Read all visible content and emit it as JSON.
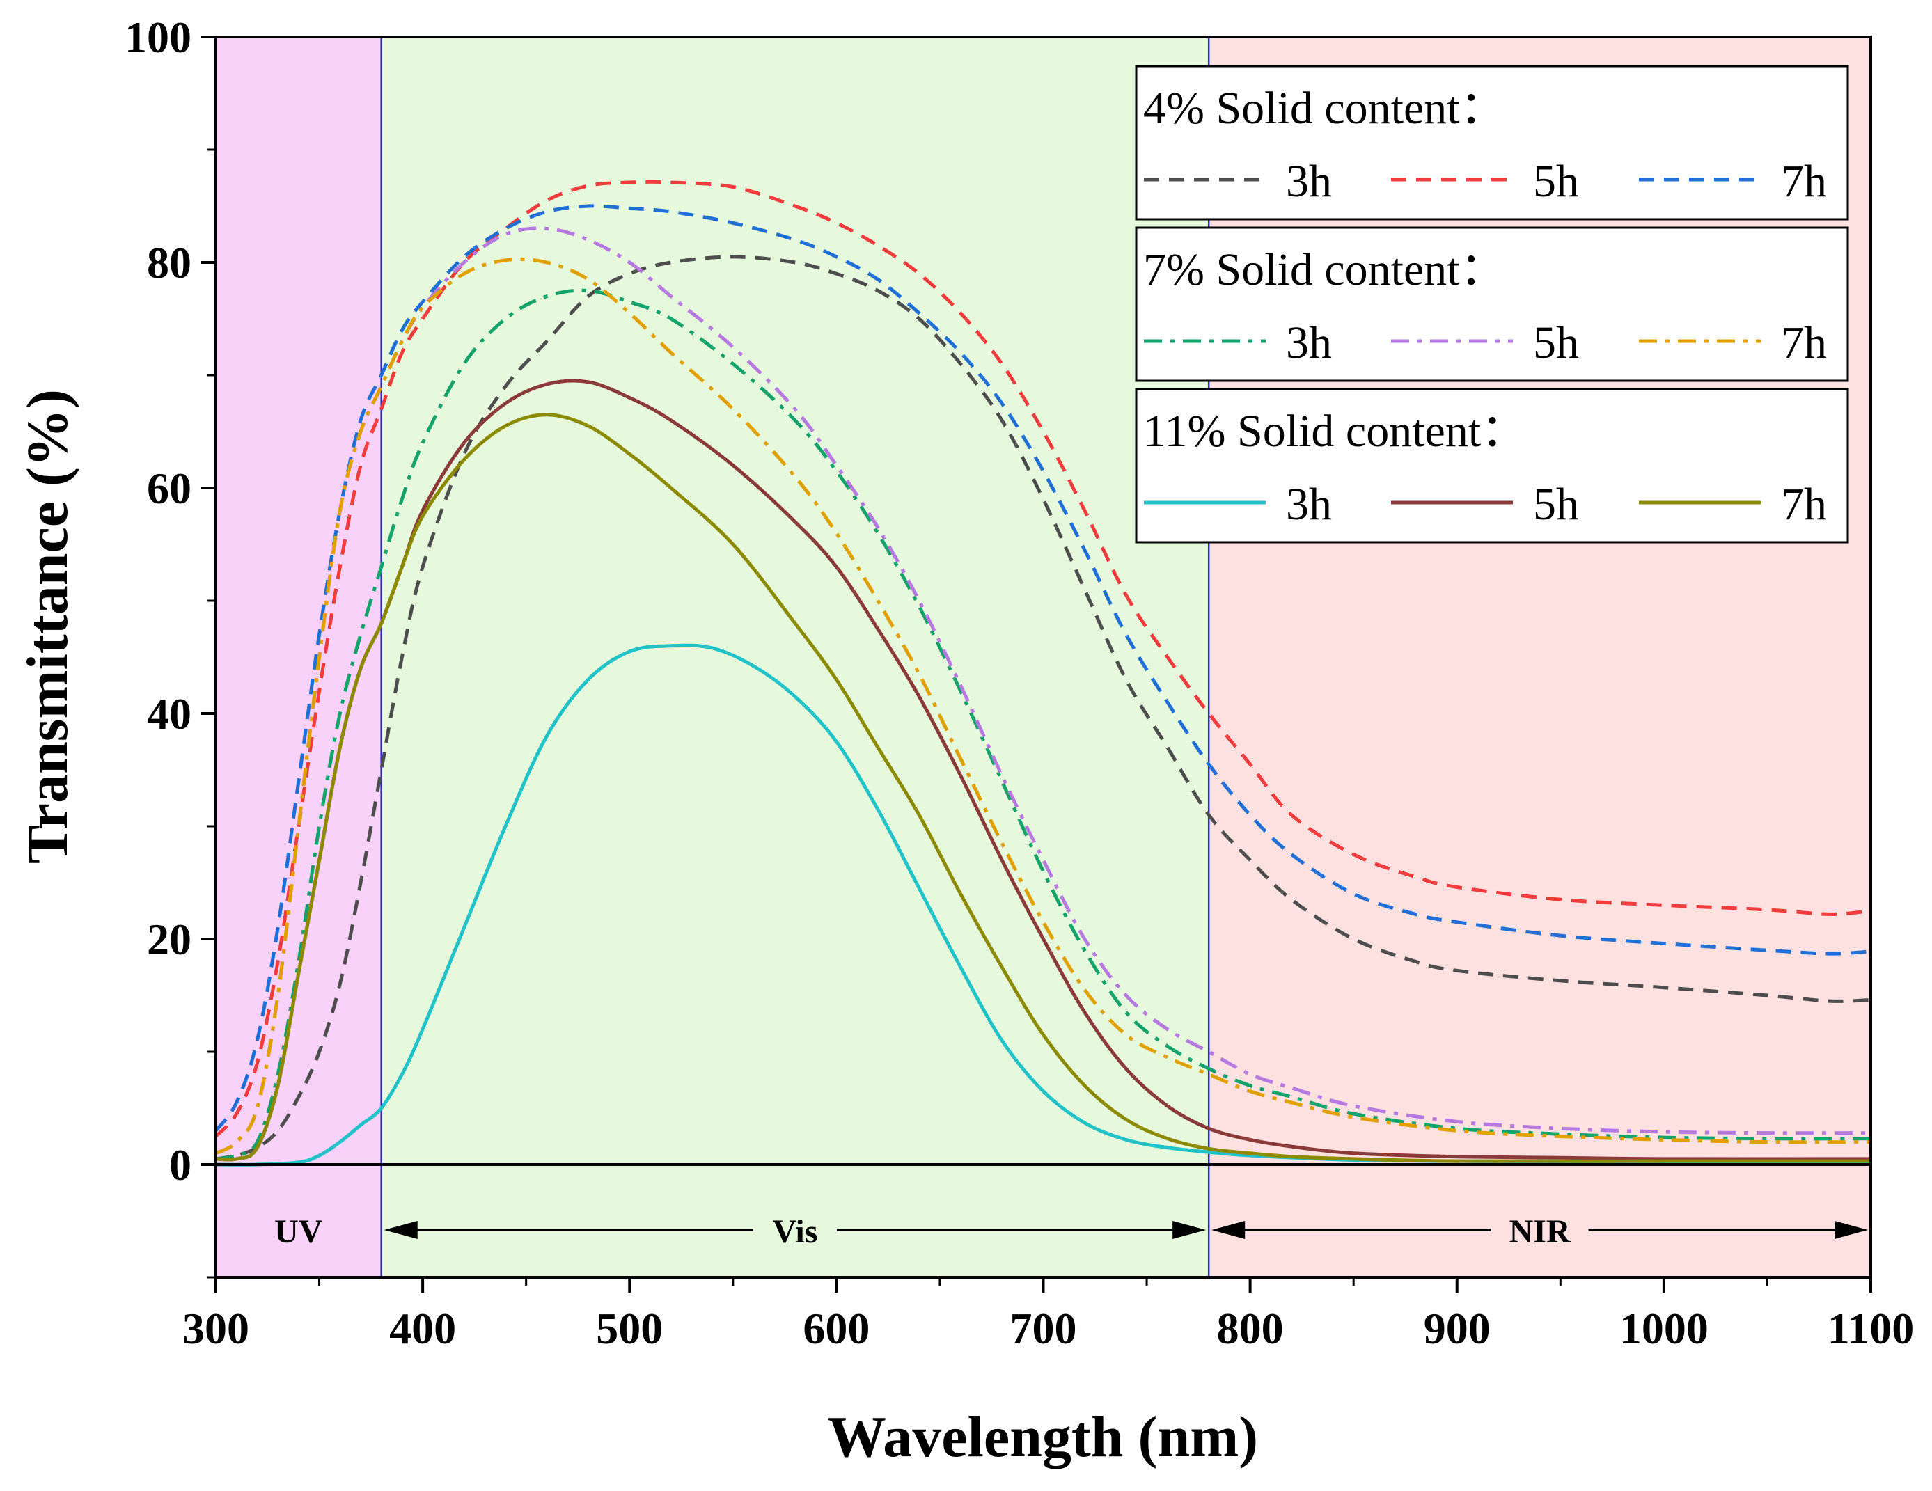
{
  "chart_data": {
    "type": "line",
    "xlabel": "Wavelength (nm)",
    "ylabel": "Transmittance (%)",
    "xlim": [
      300,
      1100
    ],
    "ylim": [
      -10,
      100
    ],
    "xticks": [
      300,
      400,
      500,
      600,
      700,
      800,
      900,
      1000,
      1100
    ],
    "yticks": [
      0,
      20,
      40,
      60,
      80,
      100
    ],
    "grid": false,
    "legend_position": "top-right",
    "regions": [
      {
        "label": "UV",
        "x_start": 300,
        "x_end": 380,
        "color": "#f9d2f9"
      },
      {
        "label": "Vis",
        "x_start": 380,
        "x_end": 780,
        "color": "#e6f9dc"
      },
      {
        "label": "NIR",
        "x_start": 780,
        "x_end": 1100,
        "color": "#fde0e0"
      }
    ],
    "legend_groups": [
      {
        "title": "4% Solid content：",
        "entries": [
          "3h",
          "5h",
          "7h"
        ]
      },
      {
        "title": "7% Solid content：",
        "entries": [
          "3h",
          "5h",
          "7h"
        ]
      },
      {
        "title": "11% Solid content：",
        "entries": [
          "3h",
          "5h",
          "7h"
        ]
      }
    ],
    "series": [
      {
        "name": "4% 3h",
        "group": 0,
        "label": "3h",
        "color": "#4d4d4d",
        "style": "dash",
        "x": [
          300,
          310,
          320,
          330,
          340,
          350,
          360,
          370,
          380,
          390,
          400,
          420,
          440,
          460,
          480,
          500,
          520,
          550,
          580,
          600,
          620,
          640,
          660,
          680,
          700,
          720,
          740,
          760,
          780,
          800,
          820,
          850,
          880,
          900,
          950,
          1000,
          1050,
          1080,
          1100
        ],
        "y": [
          0.5,
          0.8,
          1.5,
          3,
          6,
          10,
          16,
          25,
          35,
          45,
          53,
          63,
          69,
          73,
          77,
          79,
          80,
          80.5,
          80,
          79,
          77.5,
          75,
          71,
          66,
          59,
          51,
          43,
          37,
          31,
          27,
          23.5,
          20,
          18,
          17.2,
          16.3,
          15.7,
          15,
          14.5,
          14.6
        ]
      },
      {
        "name": "4% 5h",
        "group": 0,
        "label": "5h",
        "color": "#f03c3c",
        "style": "dash",
        "x": [
          300,
          310,
          320,
          330,
          340,
          350,
          360,
          370,
          380,
          390,
          400,
          420,
          440,
          460,
          480,
          500,
          520,
          550,
          580,
          600,
          620,
          640,
          660,
          680,
          700,
          720,
          740,
          760,
          780,
          800,
          820,
          850,
          880,
          900,
          950,
          1000,
          1050,
          1080,
          1100
        ],
        "y": [
          2.5,
          4.5,
          9,
          18,
          30,
          42,
          53,
          62,
          67,
          72,
          75,
          80,
          83,
          85.5,
          86.8,
          87.1,
          87.1,
          86.7,
          85,
          83.5,
          81.5,
          79,
          75.5,
          71,
          65,
          58,
          50.5,
          45,
          40,
          35.5,
          31,
          27.5,
          25.5,
          24.6,
          23.5,
          23,
          22.6,
          22.2,
          22.5
        ]
      },
      {
        "name": "4% 7h",
        "group": 0,
        "label": "7h",
        "color": "#1f6fd6",
        "style": "dash",
        "x": [
          300,
          310,
          320,
          330,
          340,
          350,
          360,
          370,
          380,
          390,
          400,
          420,
          440,
          460,
          480,
          500,
          520,
          550,
          580,
          600,
          620,
          640,
          660,
          680,
          700,
          720,
          740,
          760,
          780,
          800,
          820,
          850,
          880,
          900,
          950,
          1000,
          1050,
          1080,
          1100
        ],
        "y": [
          3,
          5.5,
          11,
          21,
          34,
          47,
          58,
          66,
          70,
          74,
          76.5,
          80.5,
          83,
          84.5,
          85,
          84.8,
          84.5,
          83.5,
          82,
          80.5,
          78.5,
          75.5,
          72,
          67.5,
          61.5,
          54.5,
          47,
          41,
          35.5,
          31,
          27.5,
          24,
          22.2,
          21.5,
          20.3,
          19.6,
          19,
          18.7,
          18.9
        ]
      },
      {
        "name": "7% 3h",
        "group": 1,
        "label": "3h",
        "color": "#13a36b",
        "style": "dashdot",
        "x": [
          300,
          310,
          320,
          330,
          340,
          350,
          360,
          370,
          380,
          390,
          400,
          420,
          440,
          460,
          480,
          500,
          520,
          550,
          580,
          600,
          620,
          640,
          660,
          680,
          700,
          720,
          740,
          760,
          780,
          800,
          820,
          850,
          900,
          950,
          1000,
          1050,
          1100
        ],
        "y": [
          0.5,
          0.8,
          2,
          8,
          18,
          30,
          40,
          47,
          53,
          59,
          64,
          71,
          75,
          77,
          77.5,
          76.5,
          75,
          71,
          66,
          61.5,
          56,
          49.5,
          42,
          34,
          26,
          19,
          13.5,
          10.5,
          8.5,
          7,
          6,
          4.5,
          3.2,
          2.7,
          2.4,
          2.3,
          2.3
        ]
      },
      {
        "name": "7% 5h",
        "group": 1,
        "label": "5h",
        "color": "#b679e0",
        "style": "dashdot",
        "x": [
          300,
          310,
          320,
          330,
          340,
          350,
          360,
          370,
          380,
          390,
          400,
          420,
          440,
          460,
          480,
          500,
          520,
          550,
          580,
          600,
          620,
          640,
          660,
          680,
          700,
          720,
          740,
          760,
          780,
          800,
          820,
          850,
          900,
          950,
          1000,
          1050,
          1100
        ],
        "y": [
          1,
          2,
          5,
          15,
          30,
          45,
          58,
          65,
          69,
          73,
          76,
          80,
          82.5,
          83,
          82,
          80,
          77,
          72.5,
          67,
          62,
          56.5,
          50,
          42.5,
          34.5,
          27,
          20,
          15,
          12,
          10,
          8,
          6.8,
          5.2,
          3.8,
          3.2,
          2.9,
          2.8,
          2.8
        ]
      },
      {
        "name": "7% 7h",
        "group": 1,
        "label": "7h",
        "color": "#e0a000",
        "style": "dashdot",
        "x": [
          300,
          310,
          320,
          330,
          340,
          350,
          360,
          370,
          380,
          390,
          400,
          420,
          440,
          460,
          480,
          500,
          520,
          550,
          580,
          600,
          620,
          640,
          660,
          680,
          700,
          720,
          740,
          760,
          780,
          800,
          820,
          850,
          900,
          950,
          1000,
          1050,
          1100
        ],
        "y": [
          1,
          2,
          5,
          15,
          30,
          45,
          58,
          65,
          69,
          73,
          76,
          79,
          80.2,
          80,
          78.5,
          75.5,
          72,
          67,
          61,
          56,
          50,
          43.5,
          36,
          28.5,
          21.5,
          15.5,
          11.5,
          9.5,
          8,
          6.5,
          5.5,
          4.2,
          3,
          2.5,
          2.2,
          2,
          2
        ]
      },
      {
        "name": "11% 3h",
        "group": 2,
        "label": "3h",
        "color": "#21c2c8",
        "style": "solid",
        "x": [
          300,
          320,
          340,
          350,
          360,
          370,
          380,
          390,
          400,
          420,
          440,
          460,
          480,
          500,
          520,
          540,
          560,
          580,
          600,
          620,
          640,
          660,
          680,
          700,
          720,
          740,
          760,
          780,
          800,
          850,
          900,
          1000,
          1100
        ],
        "y": [
          0,
          0,
          0.2,
          0.8,
          2,
          3.5,
          5,
          8,
          12,
          21,
          30,
          38,
          43,
          45.5,
          46,
          45.8,
          44.2,
          41.5,
          37.5,
          31.5,
          24.5,
          17.5,
          11,
          6.5,
          3.7,
          2.2,
          1.5,
          1.1,
          0.8,
          0.4,
          0.3,
          0.2,
          0.2
        ]
      },
      {
        "name": "11% 5h",
        "group": 2,
        "label": "5h",
        "color": "#8b3a3a",
        "style": "solid",
        "x": [
          300,
          310,
          320,
          330,
          340,
          350,
          360,
          370,
          380,
          390,
          400,
          420,
          440,
          460,
          480,
          500,
          520,
          550,
          580,
          600,
          620,
          640,
          660,
          680,
          700,
          720,
          740,
          760,
          780,
          800,
          820,
          850,
          900,
          950,
          1000,
          1100
        ],
        "y": [
          0.5,
          0.5,
          1.5,
          7,
          17,
          27,
          37,
          44,
          48,
          53,
          58,
          64,
          67.5,
          69.2,
          69.4,
          68,
          66,
          62,
          57,
          53,
          47.5,
          41.5,
          34.5,
          27,
          20,
          13.5,
          8.5,
          5.2,
          3.2,
          2.2,
          1.6,
          1,
          0.7,
          0.6,
          0.5,
          0.5
        ]
      },
      {
        "name": "11% 7h",
        "group": 2,
        "label": "7h",
        "color": "#8c8a00",
        "style": "solid",
        "x": [
          300,
          310,
          320,
          330,
          340,
          350,
          360,
          370,
          380,
          390,
          400,
          420,
          440,
          460,
          480,
          500,
          520,
          550,
          580,
          600,
          620,
          640,
          660,
          680,
          700,
          720,
          740,
          760,
          780,
          800,
          820,
          850,
          900,
          1000,
          1100
        ],
        "y": [
          0.5,
          0.5,
          1.5,
          7,
          17,
          27,
          37,
          44,
          48,
          53,
          57.5,
          62.5,
          65.5,
          66.5,
          65.5,
          63,
          60,
          55,
          48,
          43,
          37,
          31,
          24,
          17.5,
          11.5,
          7,
          4,
          2.3,
          1.4,
          1,
          0.7,
          0.5,
          0.3,
          0.3,
          0.3
        ]
      }
    ]
  }
}
